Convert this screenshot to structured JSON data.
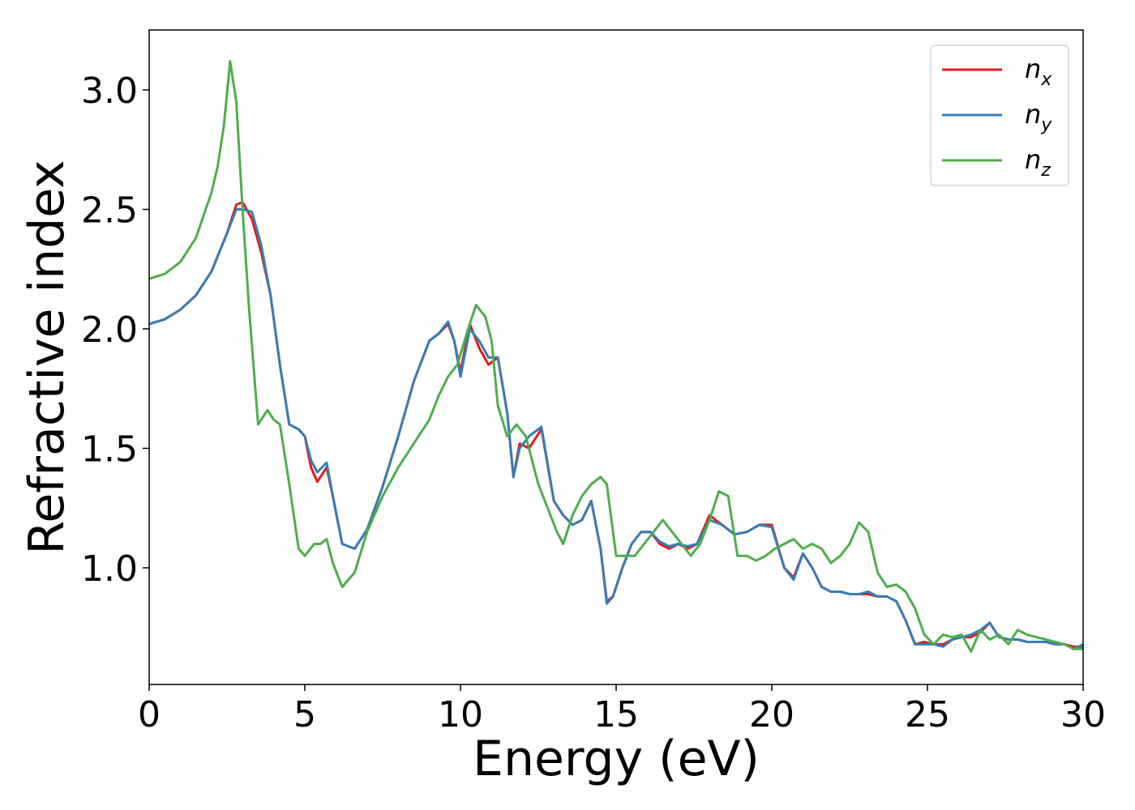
{
  "chart_data": {
    "type": "line",
    "xlabel": "Energy (eV)",
    "ylabel": "Refractive index",
    "xlim": [
      0,
      30
    ],
    "ylim": [
      0.6,
      3.2
    ],
    "xticks": [
      "0",
      "5",
      "10",
      "15",
      "20",
      "25",
      "30"
    ],
    "yticks": [
      "1.0",
      "1.5",
      "2.0",
      "2.5",
      "3.0"
    ],
    "grid": false,
    "legend_position": "top-right",
    "series": [
      {
        "name": "n_x",
        "base": "n",
        "sub": "x",
        "color": "#e41a1c",
        "x": [
          0,
          0.5,
          1,
          1.5,
          2,
          2.5,
          2.8,
          3.0,
          3.3,
          3.6,
          3.9,
          4.2,
          4.5,
          4.8,
          5.0,
          5.2,
          5.4,
          5.7,
          5.9,
          6.2,
          6.6,
          7,
          7.5,
          8,
          8.5,
          9,
          9.3,
          9.6,
          9.8,
          10.0,
          10.3,
          10.6,
          10.9,
          11.2,
          11.5,
          11.7,
          11.9,
          12.2,
          12.6,
          13.0,
          13.3,
          13.6,
          13.9,
          14.2,
          14.5,
          14.7,
          14.9,
          15.2,
          15.5,
          15.8,
          16.1,
          16.4,
          16.7,
          17.0,
          17.3,
          17.6,
          18.0,
          18.4,
          18.8,
          19.2,
          19.6,
          20.0,
          20.4,
          20.7,
          21.0,
          21.3,
          21.6,
          21.9,
          22.2,
          22.5,
          22.8,
          23.1,
          23.4,
          23.7,
          24.0,
          24.3,
          24.6,
          24.9,
          25.2,
          25.5,
          25.8,
          26.1,
          26.4,
          26.7,
          27.0,
          27.3,
          27.6,
          27.9,
          28.2,
          28.5,
          28.8,
          29.1,
          29.4,
          29.7,
          30.0
        ],
        "y": [
          2.02,
          2.04,
          2.08,
          2.14,
          2.24,
          2.4,
          2.52,
          2.53,
          2.46,
          2.32,
          2.14,
          1.85,
          1.6,
          1.58,
          1.55,
          1.42,
          1.36,
          1.42,
          1.3,
          1.1,
          1.08,
          1.16,
          1.34,
          1.55,
          1.78,
          1.95,
          1.98,
          2.02,
          1.95,
          1.82,
          2.02,
          1.92,
          1.85,
          1.88,
          1.65,
          1.38,
          1.52,
          1.5,
          1.58,
          1.28,
          1.22,
          1.18,
          1.2,
          1.28,
          1.08,
          0.86,
          0.88,
          1.0,
          1.1,
          1.15,
          1.15,
          1.1,
          1.08,
          1.1,
          1.08,
          1.1,
          1.22,
          1.18,
          1.14,
          1.15,
          1.18,
          1.18,
          1.0,
          0.96,
          1.06,
          1.0,
          0.92,
          0.9,
          0.9,
          0.89,
          0.89,
          0.89,
          0.88,
          0.88,
          0.86,
          0.78,
          0.68,
          0.69,
          0.68,
          0.68,
          0.7,
          0.71,
          0.71,
          0.73,
          0.77,
          0.71,
          0.7,
          0.7,
          0.69,
          0.69,
          0.69,
          0.68,
          0.68,
          0.67,
          0.67
        ]
      },
      {
        "name": "n_y",
        "base": "n",
        "sub": "y",
        "color": "#377eb8",
        "x": [
          0,
          0.5,
          1,
          1.5,
          2,
          2.5,
          2.8,
          3.0,
          3.3,
          3.6,
          3.9,
          4.2,
          4.5,
          4.8,
          5.0,
          5.2,
          5.4,
          5.7,
          5.9,
          6.2,
          6.6,
          7,
          7.5,
          8,
          8.5,
          9,
          9.3,
          9.6,
          9.8,
          10.0,
          10.3,
          10.6,
          10.9,
          11.2,
          11.5,
          11.7,
          11.9,
          12.2,
          12.6,
          13.0,
          13.3,
          13.6,
          13.9,
          14.2,
          14.5,
          14.7,
          14.9,
          15.2,
          15.5,
          15.8,
          16.1,
          16.4,
          16.7,
          17.0,
          17.3,
          17.6,
          18.0,
          18.4,
          18.8,
          19.2,
          19.6,
          20.0,
          20.4,
          20.7,
          21.0,
          21.3,
          21.6,
          21.9,
          22.2,
          22.5,
          22.8,
          23.1,
          23.4,
          23.7,
          24.0,
          24.3,
          24.6,
          24.9,
          25.2,
          25.5,
          25.8,
          26.1,
          26.4,
          26.7,
          27.0,
          27.3,
          27.6,
          27.9,
          28.2,
          28.5,
          28.8,
          29.1,
          29.4,
          29.7,
          30.0
        ],
        "y": [
          2.02,
          2.04,
          2.08,
          2.14,
          2.24,
          2.4,
          2.5,
          2.5,
          2.49,
          2.35,
          2.14,
          1.85,
          1.6,
          1.58,
          1.55,
          1.45,
          1.4,
          1.44,
          1.3,
          1.1,
          1.08,
          1.16,
          1.34,
          1.55,
          1.78,
          1.95,
          1.98,
          2.03,
          1.95,
          1.8,
          2.0,
          1.95,
          1.88,
          1.88,
          1.65,
          1.38,
          1.5,
          1.55,
          1.59,
          1.28,
          1.22,
          1.18,
          1.2,
          1.28,
          1.08,
          0.85,
          0.88,
          1.0,
          1.1,
          1.15,
          1.15,
          1.11,
          1.09,
          1.1,
          1.09,
          1.1,
          1.2,
          1.18,
          1.14,
          1.15,
          1.18,
          1.17,
          1.0,
          0.95,
          1.06,
          1.0,
          0.92,
          0.9,
          0.9,
          0.89,
          0.89,
          0.9,
          0.88,
          0.88,
          0.86,
          0.78,
          0.68,
          0.68,
          0.68,
          0.67,
          0.7,
          0.71,
          0.72,
          0.74,
          0.77,
          0.71,
          0.7,
          0.7,
          0.69,
          0.69,
          0.69,
          0.68,
          0.68,
          0.66,
          0.68
        ]
      },
      {
        "name": "n_z",
        "base": "n",
        "sub": "z",
        "color": "#4daf4a",
        "x": [
          0,
          0.5,
          1,
          1.5,
          2,
          2.2,
          2.4,
          2.6,
          2.8,
          3.0,
          3.2,
          3.5,
          3.8,
          4.0,
          4.2,
          4.5,
          4.8,
          5.0,
          5.3,
          5.5,
          5.7,
          5.9,
          6.2,
          6.6,
          7,
          7.5,
          8,
          8.5,
          9,
          9.3,
          9.6,
          9.9,
          10.2,
          10.5,
          10.8,
          11.0,
          11.2,
          11.5,
          11.8,
          12.1,
          12.5,
          12.8,
          13.1,
          13.3,
          13.6,
          13.9,
          14.2,
          14.5,
          14.7,
          15.0,
          15.3,
          15.6,
          15.9,
          16.2,
          16.5,
          16.8,
          17.1,
          17.4,
          17.7,
          18.0,
          18.3,
          18.6,
          18.9,
          19.2,
          19.5,
          19.8,
          20.1,
          20.4,
          20.7,
          21.0,
          21.3,
          21.6,
          21.9,
          22.2,
          22.5,
          22.8,
          23.1,
          23.4,
          23.7,
          24.0,
          24.3,
          24.6,
          24.9,
          25.2,
          25.5,
          25.8,
          26.1,
          26.4,
          26.7,
          27.0,
          27.3,
          27.6,
          27.9,
          28.2,
          28.5,
          28.8,
          29.1,
          29.4,
          29.7,
          30.0
        ],
        "y": [
          2.21,
          2.23,
          2.28,
          2.38,
          2.57,
          2.68,
          2.85,
          3.12,
          2.95,
          2.5,
          2.1,
          1.6,
          1.66,
          1.62,
          1.6,
          1.35,
          1.08,
          1.05,
          1.1,
          1.1,
          1.12,
          1.02,
          0.92,
          0.98,
          1.15,
          1.3,
          1.42,
          1.52,
          1.62,
          1.72,
          1.8,
          1.85,
          1.98,
          2.1,
          2.05,
          1.95,
          1.68,
          1.55,
          1.6,
          1.55,
          1.35,
          1.25,
          1.15,
          1.1,
          1.22,
          1.3,
          1.35,
          1.38,
          1.35,
          1.05,
          1.05,
          1.05,
          1.1,
          1.15,
          1.2,
          1.15,
          1.1,
          1.05,
          1.1,
          1.2,
          1.32,
          1.3,
          1.05,
          1.05,
          1.03,
          1.05,
          1.08,
          1.1,
          1.12,
          1.08,
          1.1,
          1.08,
          1.02,
          1.05,
          1.1,
          1.19,
          1.15,
          0.98,
          0.92,
          0.93,
          0.9,
          0.83,
          0.72,
          0.68,
          0.72,
          0.71,
          0.72,
          0.65,
          0.74,
          0.7,
          0.72,
          0.68,
          0.74,
          0.72,
          0.71,
          0.7,
          0.69,
          0.68,
          0.66,
          0.66
        ]
      }
    ]
  }
}
